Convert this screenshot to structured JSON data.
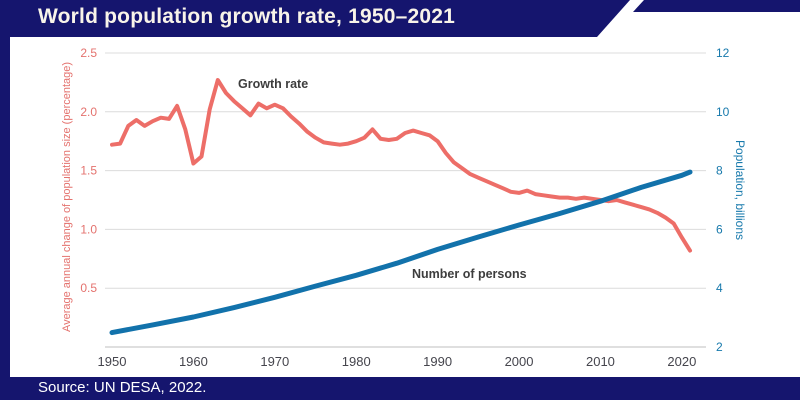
{
  "header": {
    "title": "World population growth rate, 1950–2021"
  },
  "footer": {
    "source": "Source: UN DESA, 2022."
  },
  "colors": {
    "navy": "#15156e",
    "banner_text": "#f8f4e9",
    "footer_text": "#ffffff",
    "gridline": "#dcdcdc",
    "baseline": "#bfbfbf",
    "x_tick_text": "#45454d",
    "annotation_text": "#3d3d3d",
    "growth_line": "#ed6e68",
    "population_line": "#1272ab",
    "left_axis_text": "#e4726e",
    "right_axis_text": "#1779ac"
  },
  "chart_data": {
    "type": "line",
    "title": "World population growth rate, 1950–2021",
    "grid": true,
    "x_axis": {
      "range": [
        1950,
        2021
      ],
      "ticks": [
        1950,
        1960,
        1970,
        1980,
        1990,
        2000,
        2010,
        2020
      ]
    },
    "left_axis": {
      "label": "Average annual change of population size (percentage)",
      "range": [
        0,
        2.5
      ],
      "ticks": [
        {
          "label": "0.5",
          "value": 0.5
        },
        {
          "label": "1.0",
          "value": 1.0
        },
        {
          "label": "1.5",
          "value": 1.5
        },
        {
          "label": "2.0",
          "value": 2.0
        },
        {
          "label": "2.5",
          "value": 2.5
        }
      ]
    },
    "right_axis": {
      "label": "Population, billions",
      "range": [
        2,
        12
      ],
      "ticks": [
        {
          "label": "2",
          "value": 2
        },
        {
          "label": "4",
          "value": 4
        },
        {
          "label": "6",
          "value": 6
        },
        {
          "label": "8",
          "value": 8
        },
        {
          "label": "10",
          "value": 10
        },
        {
          "label": "12",
          "value": 12
        }
      ]
    },
    "series": [
      {
        "name": "Growth rate",
        "axis": "left",
        "color": "#ed6e68",
        "stroke_width": 4,
        "x": [
          1950,
          1951,
          1952,
          1953,
          1954,
          1955,
          1956,
          1957,
          1958,
          1959,
          1960,
          1961,
          1962,
          1963,
          1964,
          1965,
          1966,
          1967,
          1968,
          1969,
          1970,
          1971,
          1972,
          1973,
          1974,
          1975,
          1976,
          1977,
          1978,
          1979,
          1980,
          1981,
          1982,
          1983,
          1984,
          1985,
          1986,
          1987,
          1988,
          1989,
          1990,
          1991,
          1992,
          1993,
          1994,
          1995,
          1996,
          1997,
          1998,
          1999,
          2000,
          2001,
          2002,
          2003,
          2004,
          2005,
          2006,
          2007,
          2008,
          2009,
          2010,
          2011,
          2012,
          2013,
          2014,
          2015,
          2016,
          2017,
          2018,
          2019,
          2020,
          2021
        ],
        "values": [
          1.72,
          1.73,
          1.88,
          1.93,
          1.88,
          1.92,
          1.95,
          1.94,
          2.05,
          1.85,
          1.56,
          1.62,
          2.02,
          2.27,
          2.16,
          2.09,
          2.03,
          1.97,
          2.07,
          2.03,
          2.06,
          2.03,
          1.96,
          1.9,
          1.83,
          1.78,
          1.74,
          1.73,
          1.72,
          1.73,
          1.75,
          1.78,
          1.85,
          1.77,
          1.76,
          1.77,
          1.82,
          1.84,
          1.82,
          1.8,
          1.75,
          1.65,
          1.57,
          1.52,
          1.47,
          1.44,
          1.41,
          1.38,
          1.35,
          1.32,
          1.31,
          1.33,
          1.3,
          1.29,
          1.28,
          1.27,
          1.27,
          1.26,
          1.27,
          1.26,
          1.25,
          1.24,
          1.25,
          1.23,
          1.21,
          1.19,
          1.17,
          1.14,
          1.1,
          1.05,
          0.93,
          0.82
        ]
      },
      {
        "name": "Number of persons",
        "axis": "right",
        "color": "#1272ab",
        "stroke_width": 5,
        "x": [
          1950,
          1955,
          1960,
          1965,
          1970,
          1975,
          1980,
          1985,
          1990,
          1995,
          2000,
          2005,
          2010,
          2015,
          2020,
          2021
        ],
        "values": [
          2.49,
          2.75,
          3.02,
          3.34,
          3.69,
          4.07,
          4.44,
          4.85,
          5.32,
          5.74,
          6.15,
          6.54,
          6.96,
          7.43,
          7.84,
          7.95
        ]
      }
    ],
    "annotations": [
      {
        "text": "Growth rate"
      },
      {
        "text": "Number of persons"
      }
    ],
    "legend_position": "inline-labels"
  }
}
